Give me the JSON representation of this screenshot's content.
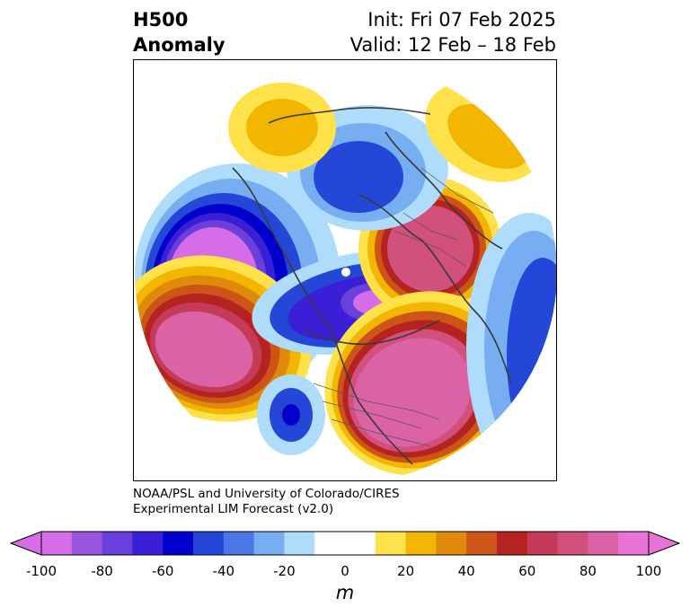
{
  "header": {
    "variable": "H500",
    "field": "Anomaly",
    "init": "Init: Fri 07 Feb 2025",
    "valid": "Valid: 12 Feb – 18 Feb"
  },
  "credit": {
    "line1": "NOAA/PSL and University of Colorado/CIRES",
    "line2": "Experimental LIM Forecast (v2.0)"
  },
  "colorbar": {
    "unit": "m",
    "ticks": [
      "-100",
      "-80",
      "-60",
      "-40",
      "-20",
      "0",
      "20",
      "40",
      "60",
      "80",
      "100"
    ],
    "levels": [
      -100,
      -90,
      -80,
      -70,
      -60,
      -50,
      -40,
      -30,
      -20,
      -10,
      10,
      20,
      30,
      40,
      50,
      60,
      70,
      80,
      90,
      100
    ],
    "colors": [
      "#d66de8",
      "#9a55e0",
      "#6a3fdc",
      "#3a1fd6",
      "#0000cc",
      "#2447d8",
      "#4b76e6",
      "#77aef2",
      "#aedcfa",
      "#ffffff",
      "#ffe14a",
      "#f2b600",
      "#e08a0c",
      "#cc5416",
      "#b52222",
      "#c43a58",
      "#d2507c",
      "#dc62a6",
      "#e872d6"
    ],
    "under_color": "#d66de8",
    "over_color": "#e872d6"
  }
}
